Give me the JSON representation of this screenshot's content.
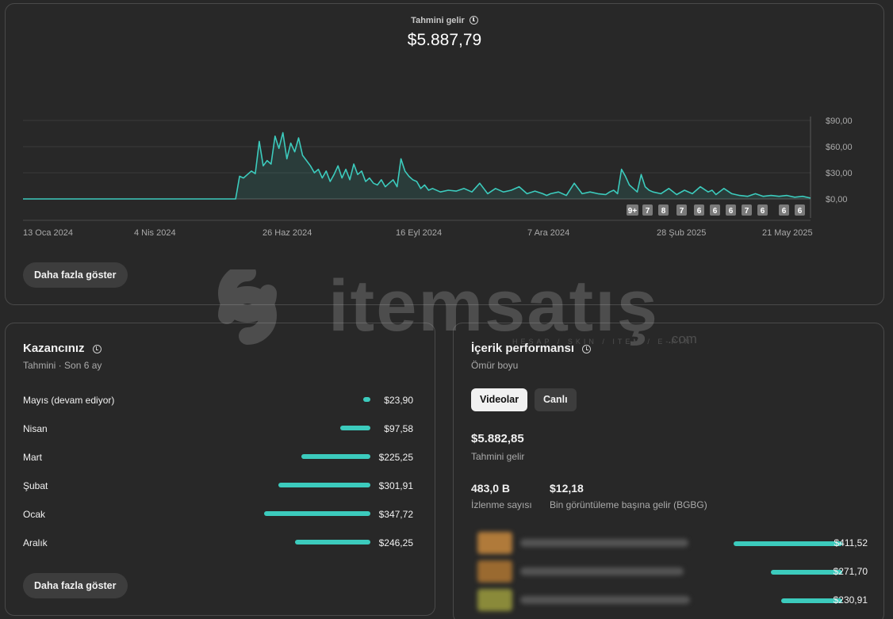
{
  "header": {
    "label": "Tahmini gelir",
    "value": "$5.887,79"
  },
  "chart_data": {
    "type": "area",
    "ylim": [
      0,
      90
    ],
    "y_ticks": [
      "$90,00",
      "$60,00",
      "$30,00",
      "$0,00"
    ],
    "x_tick_labels": [
      "13 Oca 2024",
      "4 Nis 2024",
      "26 Haz 2024",
      "16 Eyl 2024",
      "7 Ara 2024",
      "28 Şub 2025",
      "21 May 2025"
    ],
    "line_color": "#3ccbbd",
    "series": [
      {
        "x": [
          0.0,
          0.1,
          0.2,
          0.27,
          0.275,
          0.28,
          0.285,
          0.29,
          0.295,
          0.3,
          0.305,
          0.31,
          0.315,
          0.32,
          0.325,
          0.33,
          0.335,
          0.34,
          0.345,
          0.35,
          0.355,
          0.36,
          0.365,
          0.37,
          0.375,
          0.38,
          0.385,
          0.39,
          0.395,
          0.4,
          0.405,
          0.41,
          0.415,
          0.42,
          0.425,
          0.43,
          0.435,
          0.44,
          0.445,
          0.45,
          0.455,
          0.46,
          0.465,
          0.47,
          0.475,
          0.48,
          0.485,
          0.49,
          0.495,
          0.5,
          0.505,
          0.51,
          0.515,
          0.52,
          0.53,
          0.54,
          0.55,
          0.56,
          0.57,
          0.58,
          0.59,
          0.6,
          0.61,
          0.62,
          0.63,
          0.64,
          0.65,
          0.66,
          0.665,
          0.67,
          0.68,
          0.69,
          0.7,
          0.71,
          0.72,
          0.73,
          0.74,
          0.745,
          0.75,
          0.755,
          0.76,
          0.765,
          0.77,
          0.775,
          0.78,
          0.785,
          0.79,
          0.795,
          0.8,
          0.81,
          0.82,
          0.83,
          0.84,
          0.85,
          0.86,
          0.87,
          0.875,
          0.88,
          0.89,
          0.9,
          0.91,
          0.92,
          0.93,
          0.94,
          0.95,
          0.96,
          0.97,
          0.98,
          0.99,
          1.0
        ],
        "y": [
          0,
          0,
          0,
          0,
          26,
          24,
          28,
          32,
          29,
          66,
          38,
          44,
          40,
          72,
          58,
          76,
          46,
          64,
          54,
          70,
          50,
          44,
          38,
          30,
          34,
          24,
          32,
          20,
          28,
          38,
          24,
          34,
          22,
          40,
          28,
          32,
          20,
          24,
          18,
          16,
          22,
          14,
          18,
          22,
          14,
          46,
          32,
          26,
          22,
          20,
          12,
          16,
          10,
          12,
          8,
          10,
          9,
          12,
          8,
          18,
          6,
          12,
          8,
          10,
          14,
          6,
          9,
          6,
          4,
          6,
          8,
          4,
          18,
          6,
          8,
          6,
          5,
          8,
          10,
          6,
          34,
          26,
          16,
          12,
          8,
          28,
          14,
          10,
          8,
          6,
          12,
          5,
          10,
          6,
          14,
          8,
          10,
          5,
          12,
          6,
          4,
          3,
          6,
          3,
          4,
          3,
          4,
          2,
          3,
          1
        ]
      }
    ],
    "event_markers": [
      "9+",
      "7",
      "8",
      "7",
      "6",
      "6",
      "6",
      "7",
      "6",
      "6",
      "6"
    ]
  },
  "top_card": {
    "show_more": "Daha fazla göster"
  },
  "earnings": {
    "title": "Kazancınız",
    "subtitle": "Tahmini · Son 6 ay",
    "max_value": 347.72,
    "rows": [
      {
        "label": "Mayıs (devam ediyor)",
        "value": 23.9,
        "value_text": "$23,90"
      },
      {
        "label": "Nisan",
        "value": 97.58,
        "value_text": "$97,58"
      },
      {
        "label": "Mart",
        "value": 225.25,
        "value_text": "$225,25"
      },
      {
        "label": "Şubat",
        "value": 301.91,
        "value_text": "$301,91"
      },
      {
        "label": "Ocak",
        "value": 347.72,
        "value_text": "$347,72"
      },
      {
        "label": "Aralık",
        "value": 246.25,
        "value_text": "$246,25"
      }
    ],
    "show_more": "Daha fazla göster"
  },
  "content": {
    "title": "İçerik performansı",
    "subtitle": "Ömür boyu",
    "tabs": [
      "Videolar",
      "Canlı"
    ],
    "revenue_value": "$5.882,85",
    "revenue_label": "Tahmini gelir",
    "views_value": "483,0 B",
    "views_label": "İzlenme sayısı",
    "rpm_value": "$12,18",
    "rpm_label": "Bin görüntüleme başına gelir (BGBG)",
    "max_value": 411.52,
    "videos": [
      {
        "value": 411.52,
        "value_text": "$411,52",
        "thumb_color": "#b07a3a"
      },
      {
        "value": 271.7,
        "value_text": "$271,70",
        "thumb_color": "#9a6a30"
      },
      {
        "value": 230.91,
        "value_text": "$230,91",
        "thumb_color": "#8a8a3a"
      }
    ]
  },
  "watermark": {
    "text": "itemsatış",
    "tagline": "HESAP / SKIN / ITEM / E-PIN",
    "suffix": ".com"
  }
}
